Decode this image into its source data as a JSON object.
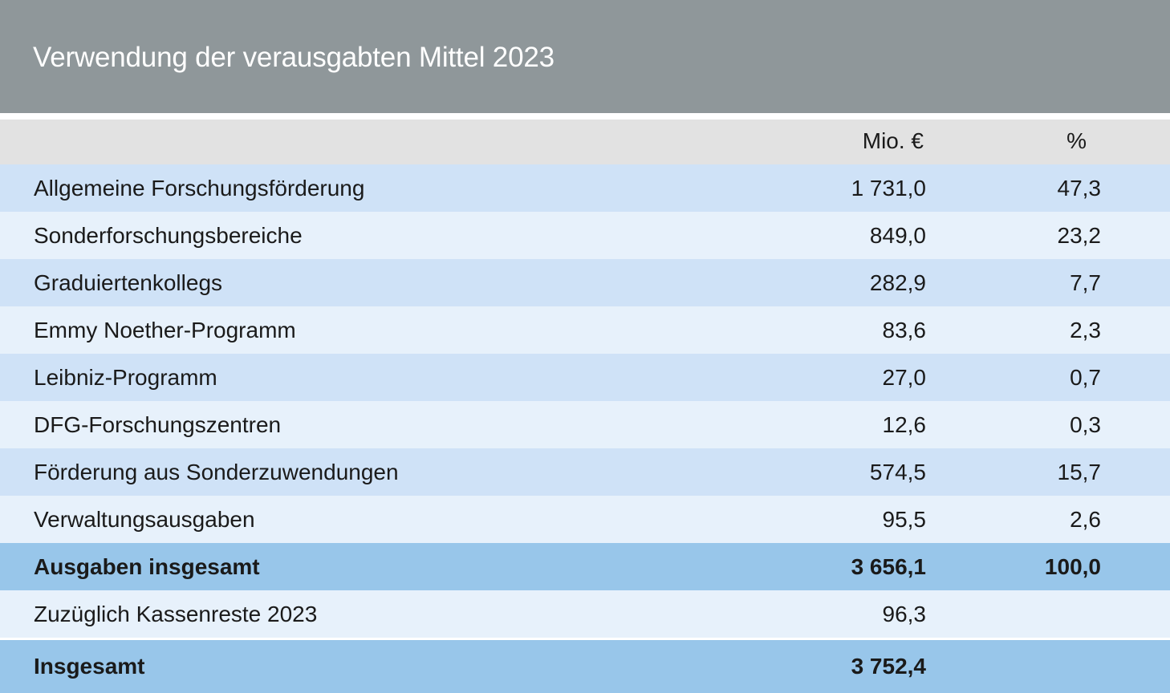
{
  "title": "Verwendung der verausgabten Mittel 2023",
  "columns": {
    "label": "",
    "mio": "Mio. €",
    "pct": "%"
  },
  "rows": [
    {
      "label": "Allgemeine Forschungsförderung",
      "mio": "1 731,0",
      "pct": "47,3"
    },
    {
      "label": "Sonderforschungsbereiche",
      "mio": "849,0",
      "pct": "23,2"
    },
    {
      "label": "Graduiertenkollegs",
      "mio": "282,9",
      "pct": "7,7"
    },
    {
      "label": "Emmy Noether-Programm",
      "mio": "83,6",
      "pct": "2,3"
    },
    {
      "label": "Leibniz-Programm",
      "mio": "27,0",
      "pct": "0,7"
    },
    {
      "label": "DFG-Forschungszentren",
      "mio": "12,6",
      "pct": "0,3"
    },
    {
      "label": "Förderung aus Sonderzuwendungen",
      "mio": "574,5",
      "pct": "15,7"
    },
    {
      "label": "Verwaltungsausgaben",
      "mio": "95,5",
      "pct": "2,6"
    }
  ],
  "subtotal": {
    "label": "Ausgaben insgesamt",
    "mio": "3 656,1",
    "pct": "100,0"
  },
  "carryover": {
    "label": "Zuzüglich Kassenreste 2023",
    "mio": "96,3",
    "pct": ""
  },
  "grand_total": {
    "label": "Insgesamt",
    "mio": "3 752,4",
    "pct": ""
  },
  "colors": {
    "header_bg": "#8f979a",
    "column_header_bg": "#e2e2e2",
    "row_dark": "#cfe2f7",
    "row_light": "#e7f1fb",
    "total_bg": "#98c6ea"
  }
}
